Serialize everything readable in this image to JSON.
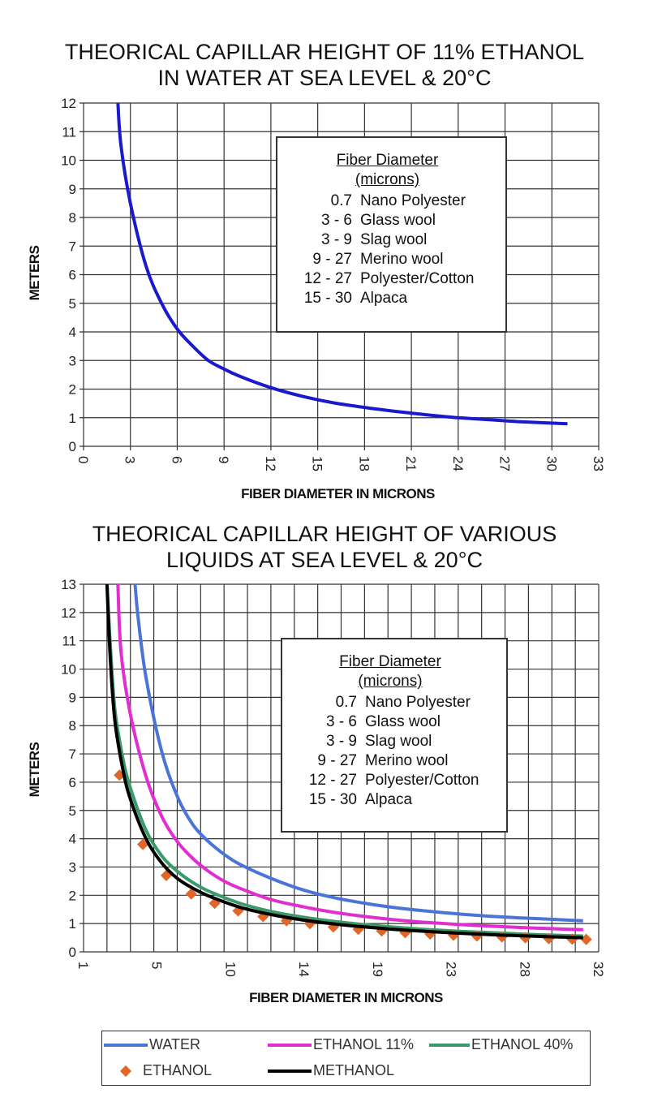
{
  "chart_data": [
    {
      "type": "line",
      "title_lines": [
        "THEORICAL CAPILLAR HEIGHT OF 11% ETHANOL",
        "IN WATER AT SEA LEVEL & 20°C"
      ],
      "xlabel": "FIBER DIAMETER IN MICRONS",
      "ylabel": "METERS",
      "xlim": [
        0,
        33
      ],
      "ylim": [
        0,
        12
      ],
      "x_ticks": [
        0,
        3,
        6,
        9,
        12,
        15,
        18,
        21,
        24,
        27,
        30,
        33
      ],
      "y_ticks": [
        0,
        1,
        2,
        3,
        4,
        5,
        6,
        7,
        8,
        9,
        10,
        11,
        12
      ],
      "grid": true,
      "series": [
        {
          "color": "#1a1acc",
          "x": [
            2.2,
            2.4,
            3,
            4,
            5,
            6,
            7,
            8,
            9,
            10,
            12,
            14,
            16,
            18,
            20,
            22,
            24,
            26,
            28,
            31
          ],
          "y": [
            12.0,
            10.5,
            8.5,
            6.3,
            5.0,
            4.1,
            3.5,
            3.0,
            2.7,
            2.45,
            2.05,
            1.75,
            1.52,
            1.36,
            1.22,
            1.1,
            1.0,
            0.93,
            0.86,
            0.79
          ]
        }
      ],
      "info_box": {
        "header_1": "Fiber Diameter",
        "header_2": "(microns)",
        "rows": [
          {
            "range": "0.7",
            "name": "Nano Polyester"
          },
          {
            "range": "3 - 6",
            "name": "Glass wool"
          },
          {
            "range": "3 - 9",
            "name": "Slag wool"
          },
          {
            "range": "9 - 27",
            "name": "Merino wool"
          },
          {
            "range": "12 - 27",
            "name": "Polyester/Cotton"
          },
          {
            "range": "15 - 30",
            "name": "Alpaca"
          }
        ]
      }
    },
    {
      "type": "line",
      "title_lines": [
        "THEORICAL CAPILLAR HEIGHT OF VARIOUS",
        "LIQUIDS AT SEA LEVEL & 20°C"
      ],
      "xlabel": "FIBER DIAMETER IN MICRONS",
      "ylabel": "METERS",
      "xlim": [
        0,
        33
      ],
      "ylim": [
        0,
        13
      ],
      "x_tick_labels": [
        "1",
        "5",
        "10",
        "14",
        "19",
        "23",
        "28",
        "32"
      ],
      "y_ticks": [
        0,
        1,
        2,
        3,
        4,
        5,
        6,
        7,
        8,
        9,
        10,
        11,
        12,
        13
      ],
      "grid": true,
      "series": [
        {
          "name": "WATER",
          "color": "#4a74d6",
          "style": "line",
          "x": [
            3.3,
            3.5,
            4,
            5,
            6,
            7,
            8,
            9,
            10,
            12,
            14,
            16,
            18,
            20,
            22,
            24,
            26,
            28,
            30,
            32
          ],
          "y": [
            13.0,
            11.8,
            9.7,
            7.1,
            5.5,
            4.5,
            3.9,
            3.45,
            3.1,
            2.6,
            2.2,
            1.92,
            1.72,
            1.56,
            1.44,
            1.34,
            1.26,
            1.2,
            1.15,
            1.1
          ]
        },
        {
          "name": "ETHANOL 11%",
          "color": "#e02ed0",
          "style": "line",
          "x": [
            2.2,
            2.4,
            3,
            4,
            5,
            6,
            7,
            8,
            9,
            10,
            12,
            14,
            16,
            18,
            20,
            22,
            24,
            26,
            28,
            30,
            32
          ],
          "y": [
            13.0,
            10.6,
            8.4,
            6.2,
            4.8,
            3.9,
            3.3,
            2.85,
            2.5,
            2.25,
            1.85,
            1.6,
            1.4,
            1.25,
            1.13,
            1.04,
            0.97,
            0.91,
            0.86,
            0.82,
            0.78
          ]
        },
        {
          "name": "ETHANOL 40%",
          "color": "#3a9a6a",
          "style": "line",
          "x": [
            1.5,
            1.7,
            2,
            2.5,
            3,
            4,
            5,
            6,
            7,
            8,
            10,
            12,
            14,
            16,
            18,
            20,
            22,
            24,
            26,
            28,
            30,
            32
          ],
          "y": [
            13.0,
            11.0,
            8.6,
            6.9,
            5.8,
            4.3,
            3.4,
            2.85,
            2.45,
            2.15,
            1.72,
            1.43,
            1.23,
            1.08,
            0.96,
            0.87,
            0.79,
            0.73,
            0.68,
            0.63,
            0.59,
            0.56
          ]
        },
        {
          "name": "ETHANOL",
          "color": "#e0662a",
          "style": "marker",
          "x": [
            2.3,
            3.8,
            5.3,
            6.9,
            8.4,
            9.9,
            11.5,
            13.0,
            14.5,
            16.0,
            17.6,
            19.1,
            20.6,
            22.2,
            23.7,
            25.2,
            26.8,
            28.3,
            29.8,
            31.3,
            32.2
          ],
          "y": [
            6.25,
            3.8,
            2.7,
            2.05,
            1.72,
            1.45,
            1.25,
            1.1,
            1.0,
            0.88,
            0.8,
            0.74,
            0.68,
            0.63,
            0.59,
            0.56,
            0.53,
            0.5,
            0.47,
            0.45,
            0.44
          ]
        },
        {
          "name": "METHANOL",
          "color": "#000000",
          "style": "line",
          "x": [
            1.5,
            1.7,
            2,
            2.5,
            3,
            4,
            5,
            6,
            7,
            8,
            10,
            12,
            14,
            16,
            18,
            20,
            22,
            24,
            26,
            28,
            30,
            32
          ],
          "y": [
            13.0,
            10.5,
            8.2,
            6.5,
            5.4,
            4.0,
            3.15,
            2.6,
            2.25,
            1.98,
            1.58,
            1.32,
            1.13,
            0.99,
            0.88,
            0.79,
            0.72,
            0.66,
            0.61,
            0.57,
            0.53,
            0.5
          ]
        }
      ],
      "info_box": {
        "header_1": "Fiber Diameter",
        "header_2": "(microns)",
        "rows": [
          {
            "range": "0.7",
            "name": "Nano Polyester"
          },
          {
            "range": "3 - 6",
            "name": "Glass wool"
          },
          {
            "range": "3 - 9",
            "name": "Slag wool"
          },
          {
            "range": "9 - 27",
            "name": "Merino wool"
          },
          {
            "range": "12 - 27",
            "name": "Polyester/Cotton"
          },
          {
            "range": "15 - 30",
            "name": "Alpaca"
          }
        ]
      },
      "legend_position": "bottom"
    }
  ]
}
